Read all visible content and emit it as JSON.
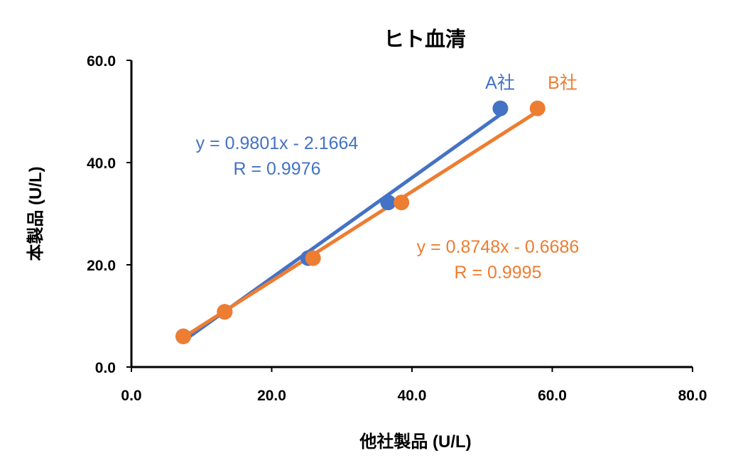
{
  "chart_data": {
    "type": "scatter",
    "title": "ヒト血清",
    "xlabel": "他社製品 (U/L)",
    "ylabel": "本製品 (U/L)",
    "xlim": [
      0,
      80
    ],
    "ylim": [
      0,
      60
    ],
    "xticks": [
      "0.0",
      "20.0",
      "40.0",
      "60.0",
      "80.0"
    ],
    "yticks": [
      "0.0",
      "20.0",
      "40.0",
      "60.0"
    ],
    "grid": false,
    "series": [
      {
        "name": "A社",
        "color": "#4472C4",
        "x": [
          7.4,
          13.3,
          25.2,
          36.6,
          52.6
        ],
        "y": [
          6.0,
          10.8,
          21.3,
          32.2,
          50.6
        ],
        "slope": 0.9801,
        "intercept": -2.1664,
        "equation": "y = 0.9801x - 2.1664",
        "r_label": "R = 0.9976"
      },
      {
        "name": "B社",
        "color": "#ED7D31",
        "x": [
          7.4,
          13.3,
          25.9,
          38.5,
          57.9
        ],
        "y": [
          6.0,
          10.8,
          21.3,
          32.2,
          50.6
        ],
        "slope": 0.8748,
        "intercept": -0.6686,
        "equation": "y = 0.8748x - 0.6686",
        "r_label": "R = 0.9995"
      }
    ]
  }
}
